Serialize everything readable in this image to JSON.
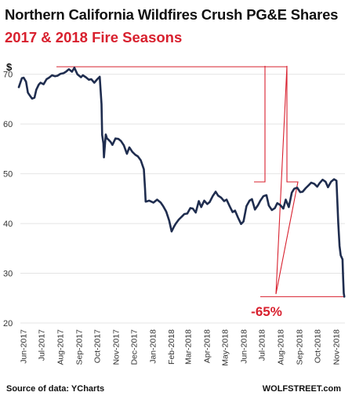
{
  "header": {
    "title": "Northern California Wildfires Crush PG&E Shares",
    "subtitle": "2017 & 2018 Fire Seasons"
  },
  "footer": {
    "source": "Source of data: YCharts",
    "brand": "WOLFSTREET.com"
  },
  "colors": {
    "line": "#1f2d4f",
    "accent": "#d8202e",
    "grid": "#e4e4e4"
  },
  "chart_data": {
    "type": "line",
    "ylabel": "$",
    "ylim": [
      20,
      72
    ],
    "yticks": [
      20,
      30,
      40,
      50,
      60,
      70
    ],
    "xlim": [
      "2017-05-25",
      "2018-11-16"
    ],
    "xticks": [
      "Jun-2017",
      "Jul-2017",
      "Aug-2017",
      "Sep-2017",
      "Oct-2017",
      "Nov-2017",
      "Dec-2017",
      "Jan-2018",
      "Feb-2018",
      "Mar-2018",
      "Apr-2018",
      "May-2018",
      "Jun-2018",
      "Jul-2018",
      "Aug-2018",
      "Sep-2018",
      "Oct-2018",
      "Nov-2018"
    ],
    "grid": true,
    "annotation": {
      "text": "-65%",
      "peak": 71.5,
      "trough": 25.3
    },
    "series": [
      {
        "x": [
          "2017-05-25",
          "2017-05-30",
          "2017-06-02",
          "2017-06-06",
          "2017-06-09",
          "2017-06-13",
          "2017-06-16",
          "2017-06-20",
          "2017-06-23",
          "2017-06-27",
          "2017-06-30",
          "2017-07-05",
          "2017-07-10",
          "2017-07-14",
          "2017-07-19",
          "2017-07-24",
          "2017-07-28",
          "2017-08-02",
          "2017-08-07",
          "2017-08-11",
          "2017-08-16",
          "2017-08-21",
          "2017-08-25",
          "2017-08-30",
          "2017-09-05",
          "2017-09-08",
          "2017-09-13",
          "2017-09-18",
          "2017-09-22",
          "2017-09-27",
          "2017-10-02",
          "2017-10-06",
          "2017-10-09",
          "2017-10-10",
          "2017-10-12",
          "2017-10-13",
          "2017-10-16",
          "2017-10-18",
          "2017-10-20",
          "2017-10-24",
          "2017-10-27",
          "2017-11-01",
          "2017-11-06",
          "2017-11-10",
          "2017-11-15",
          "2017-11-20",
          "2017-11-24",
          "2017-11-29",
          "2017-12-04",
          "2017-12-08",
          "2017-12-13",
          "2017-12-18",
          "2017-12-20",
          "2017-12-21",
          "2017-12-27",
          "2018-01-03",
          "2018-01-09",
          "2018-01-15",
          "2018-01-19",
          "2018-01-24",
          "2018-01-29",
          "2018-02-02",
          "2018-02-06",
          "2018-02-09",
          "2018-02-14",
          "2018-02-19",
          "2018-02-23",
          "2018-02-28",
          "2018-03-05",
          "2018-03-09",
          "2018-03-14",
          "2018-03-19",
          "2018-03-23",
          "2018-03-28",
          "2018-04-02",
          "2018-04-06",
          "2018-04-11",
          "2018-04-16",
          "2018-04-20",
          "2018-04-25",
          "2018-04-30",
          "2018-05-04",
          "2018-05-09",
          "2018-05-14",
          "2018-05-18",
          "2018-05-23",
          "2018-05-28",
          "2018-06-01",
          "2018-06-06",
          "2018-06-11",
          "2018-06-15",
          "2018-06-20",
          "2018-06-25",
          "2018-06-29",
          "2018-07-04",
          "2018-07-09",
          "2018-07-13",
          "2018-07-18",
          "2018-07-23",
          "2018-07-27",
          "2018-08-01",
          "2018-08-06",
          "2018-08-10",
          "2018-08-15",
          "2018-08-20",
          "2018-08-24",
          "2018-08-29",
          "2018-09-03",
          "2018-09-07",
          "2018-09-12",
          "2018-09-17",
          "2018-09-21",
          "2018-09-26",
          "2018-10-01",
          "2018-10-05",
          "2018-10-10",
          "2018-10-15",
          "2018-10-19",
          "2018-10-24",
          "2018-10-29",
          "2018-11-02",
          "2018-11-05",
          "2018-11-07",
          "2018-11-09",
          "2018-11-12",
          "2018-11-13",
          "2018-11-14",
          "2018-11-15"
        ],
        "y": [
          67.4,
          69.2,
          69.3,
          68.5,
          66.3,
          65.6,
          65.1,
          65.3,
          66.9,
          67.9,
          68.3,
          68.0,
          69.0,
          69.3,
          69.8,
          69.6,
          69.7,
          70.1,
          70.2,
          70.5,
          71.0,
          70.5,
          71.3,
          70.0,
          69.4,
          69.8,
          69.4,
          68.9,
          69.0,
          68.3,
          69.0,
          69.5,
          64.0,
          57.8,
          56.1,
          53.3,
          57.9,
          57.1,
          56.9,
          56.4,
          55.8,
          57.1,
          57.0,
          56.6,
          55.7,
          54.0,
          55.3,
          54.4,
          53.8,
          53.5,
          52.7,
          50.9,
          47.0,
          44.4,
          44.6,
          44.2,
          44.8,
          44.2,
          43.5,
          42.4,
          40.6,
          38.4,
          39.4,
          40.0,
          40.8,
          41.4,
          41.9,
          42.0,
          43.1,
          43.0,
          42.2,
          44.5,
          43.3,
          44.6,
          43.9,
          44.3,
          45.5,
          46.4,
          45.6,
          45.2,
          44.5,
          44.8,
          43.5,
          42.3,
          42.6,
          41.2,
          39.9,
          40.4,
          43.5,
          44.6,
          44.9,
          42.8,
          43.7,
          44.6,
          45.5,
          45.7,
          43.6,
          42.7,
          43.1,
          44.1,
          43.7,
          43.0,
          44.8,
          43.3,
          46.2,
          47.0,
          47.2,
          46.3,
          46.4,
          47.1,
          47.7,
          48.2,
          48.0,
          47.4,
          48.1,
          48.8,
          48.4,
          47.3,
          48.4,
          48.9,
          48.6,
          40.0,
          35.5,
          33.6,
          32.8,
          29.0,
          26.0,
          25.3
        ]
      }
    ]
  }
}
